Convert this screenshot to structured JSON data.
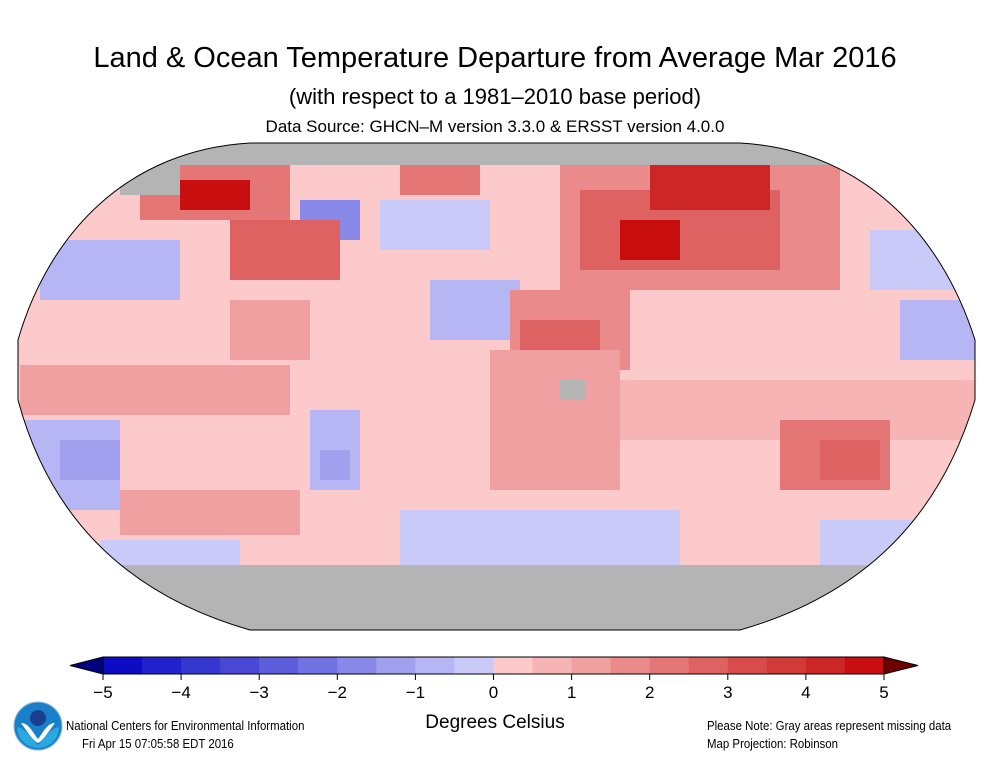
{
  "header": {
    "title": "Land & Ocean Temperature Departure from Average Mar 2016",
    "subtitle": "(with respect to a 1981–2010 base period)",
    "source": "Data Source: GHCN–M version 3.3.0 & ERSST version 4.0.0"
  },
  "map": {
    "projection_label": "Map Projection: Robinson",
    "missing_color": "#b4b4b4"
  },
  "colorbar": {
    "min": -5,
    "max": 5,
    "tick_labels": [
      "−5",
      "−4",
      "−3",
      "−2",
      "−1",
      "0",
      "1",
      "2",
      "3",
      "4",
      "5"
    ],
    "colors": [
      "#0c0cc4",
      "#2222cc",
      "#3636d0",
      "#4848d4",
      "#5e5edc",
      "#7272e2",
      "#8888e8",
      "#a0a0ee",
      "#b6b6f4",
      "#cacaf8",
      "#fccaca",
      "#f6b4b4",
      "#f0a0a0",
      "#ea8a8a",
      "#e47676",
      "#de6262",
      "#d84c4c",
      "#d23a3a",
      "#cc2626",
      "#c80e0e"
    ],
    "under_color": "#000080",
    "over_color": "#6e0000",
    "units": "Degrees Celsius"
  },
  "footer": {
    "org": "National Centers for Environmental Information",
    "timestamp": "Fri Apr 15 07:05:58 EDT 2016",
    "note": "Please Note: Gray areas represent missing data",
    "projection": "Map Projection: Robinson",
    "logo_text": "NOAA"
  }
}
